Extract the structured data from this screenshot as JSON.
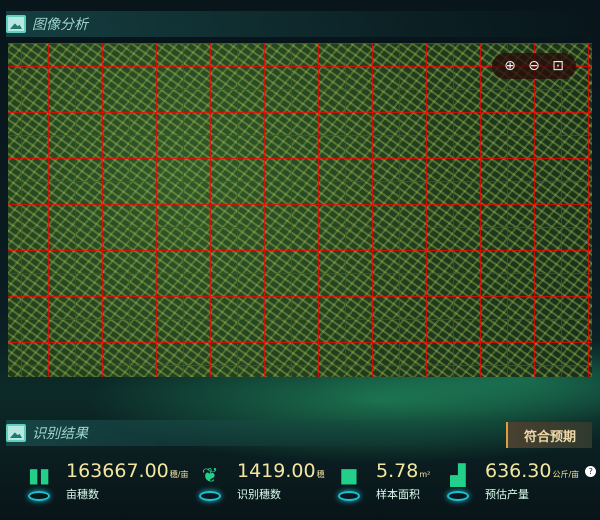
{
  "analysis": {
    "title": "图像分析",
    "tools": {
      "zoom_in": "⊕",
      "zoom_out": "⊖",
      "fit": "⊡"
    }
  },
  "results": {
    "title": "识别结果",
    "status": "符合预期",
    "stats": [
      {
        "value": "163667.00",
        "unit": "穗/亩",
        "label": "亩穗数",
        "icon": "grain-blocks-icon"
      },
      {
        "value": "1419.00",
        "unit": "穗",
        "label": "识别穗数",
        "icon": "wheat-icon"
      },
      {
        "value": "5.78",
        "unit": "m²",
        "label": "样本面积",
        "icon": "area-square-icon"
      },
      {
        "value": "636.30",
        "unit": "公斤/亩",
        "label": "预估产量",
        "icon": "bar-chart-icon",
        "help": "?"
      }
    ]
  },
  "colors": {
    "value": "#f3e6a0",
    "accent": "#22d08a",
    "detection_box": "#ff0000"
  }
}
